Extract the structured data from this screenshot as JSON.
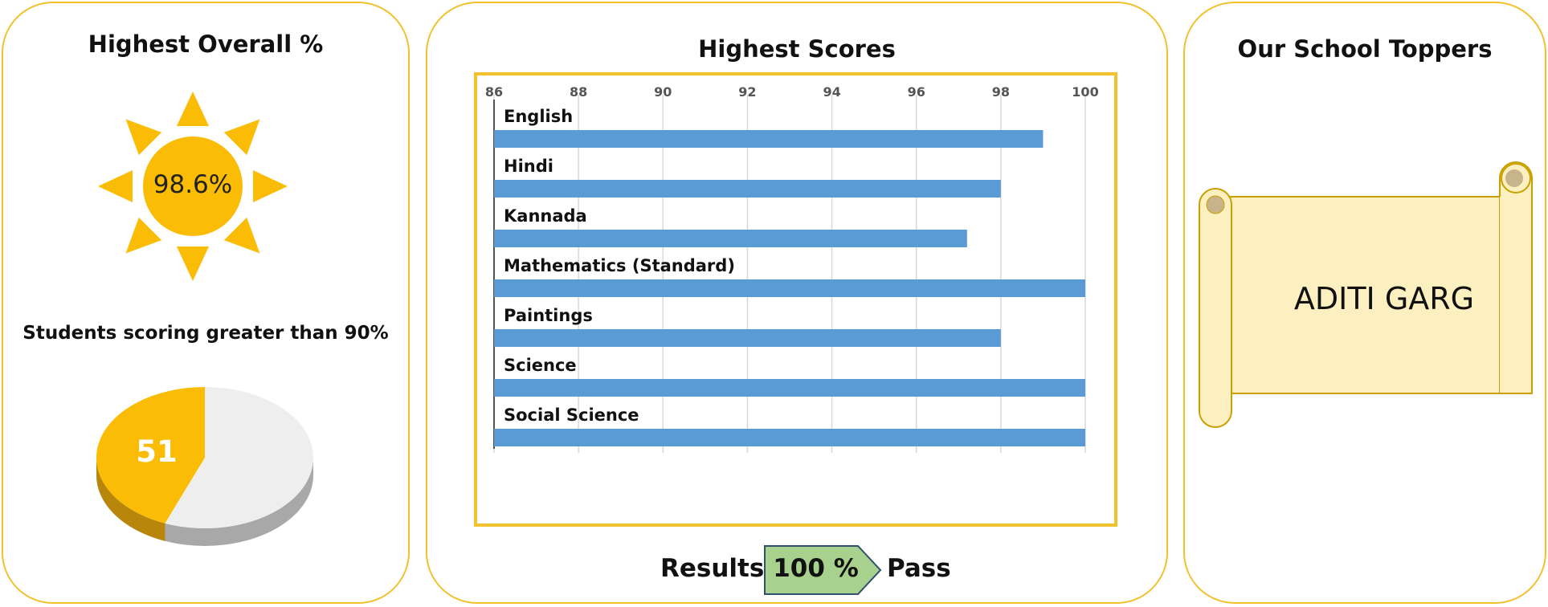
{
  "left_panel": {
    "title": "Highest Overall %",
    "sun_value": "98.6%",
    "students_label": "Students scoring greater than 90%",
    "pie_value": "51"
  },
  "middle_panel": {
    "title": "Highest Scores",
    "results_label": "Results",
    "results_value": "100 %",
    "pass_label": "Pass"
  },
  "right_panel": {
    "title": "Our School Toppers",
    "topper_name": "ADITI GARG"
  },
  "colors": {
    "accent": "#f2c12e",
    "sun": "#fbbc05",
    "bar": "#5b9bd5",
    "badge": "#a9d18e",
    "scroll_fill": "#fdf0c0",
    "pie_rest": "#eeeeee"
  },
  "chart_data": [
    {
      "type": "bar",
      "orientation": "horizontal",
      "categories": [
        "English",
        "Hindi",
        "Kannada",
        "Mathematics (Standard)",
        "Paintings",
        "Science",
        "Social Science"
      ],
      "values": [
        99,
        98,
        97.2,
        100,
        98,
        100,
        100
      ],
      "xlim": [
        86,
        100
      ],
      "xticks": [
        "86",
        "88",
        "90",
        "92",
        "94",
        "96",
        "98",
        "100"
      ],
      "grid": true,
      "title": "Highest Scores"
    },
    {
      "type": "pie",
      "labels": [
        "51",
        ""
      ],
      "values": [
        44,
        56
      ],
      "title": "Students scoring greater than 90%"
    }
  ]
}
